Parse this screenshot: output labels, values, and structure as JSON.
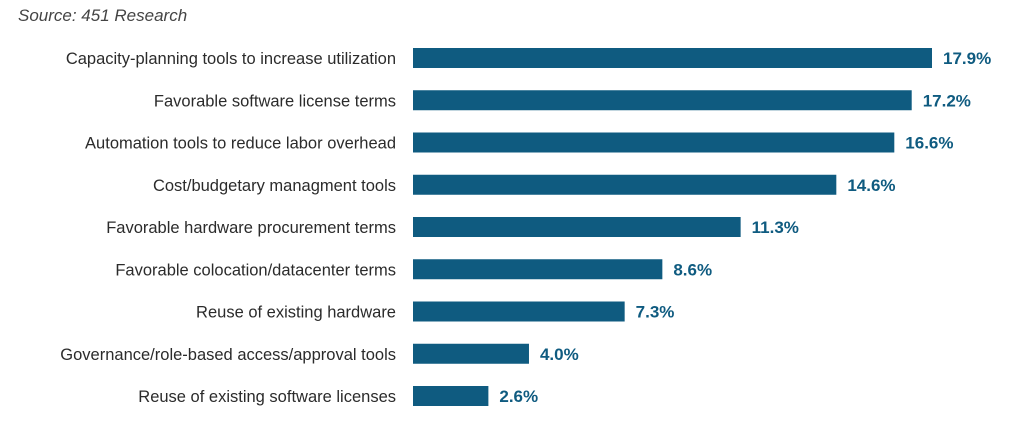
{
  "source": "Source: 451 Research",
  "colors": {
    "bar": "#0f5b80",
    "value_text": "#0f5b80"
  },
  "chart_data": {
    "type": "bar",
    "orientation": "horizontal",
    "title": "",
    "xlabel": "",
    "ylabel": "",
    "xlim": [
      0,
      17.9
    ],
    "grid": false,
    "categories": [
      "Capacity-planning tools to increase utilization",
      "Favorable software license terms",
      "Automation tools to reduce labor overhead",
      "Cost/budgetary managment tools",
      "Favorable hardware procurement terms",
      "Favorable colocation/datacenter terms",
      "Reuse of existing hardware",
      "Governance/role-based access/approval tools",
      "Reuse of existing software licenses"
    ],
    "values": [
      17.9,
      17.2,
      16.6,
      14.6,
      11.3,
      8.6,
      7.3,
      4.0,
      2.6
    ],
    "value_labels": [
      "17.9%",
      "17.2%",
      "16.6%",
      "14.6%",
      "11.3%",
      "8.6%",
      "7.3%",
      "4.0%",
      "2.6%"
    ]
  }
}
